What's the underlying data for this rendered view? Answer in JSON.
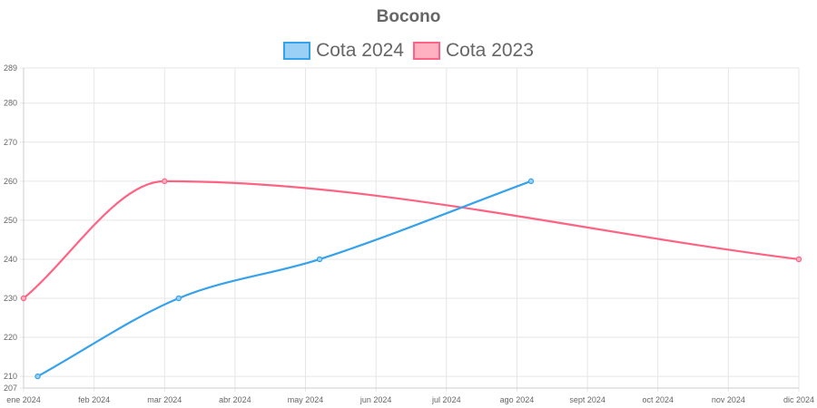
{
  "chart_data": {
    "type": "line",
    "title": "Bocono",
    "legend_position": "top",
    "grid": true,
    "x_categories": [
      "ene 2024",
      "feb 2024",
      "mar 2024",
      "abr 2024",
      "may 2024",
      "jun 2024",
      "jul 2024",
      "ago 2024",
      "sept 2024",
      "oct 2024",
      "nov 2024",
      "dic 2024"
    ],
    "y_ticks": [
      207,
      210,
      220,
      230,
      240,
      250,
      260,
      270,
      280,
      289
    ],
    "ylim": [
      207,
      289
    ],
    "series": [
      {
        "name": "Cota 2024",
        "color": "#36a2eb",
        "fill": "#9ad0f5",
        "points": [
          {
            "x": 0.2,
            "y": 210
          },
          {
            "x": 2.2,
            "y": 230
          },
          {
            "x": 4.2,
            "y": 240
          },
          {
            "x": 7.2,
            "y": 260
          }
        ]
      },
      {
        "name": "Cota 2023",
        "color": "#ff6384",
        "fill": "#ffb1c1",
        "points": [
          {
            "x": 0,
            "y": 230
          },
          {
            "x": 2,
            "y": 260
          },
          {
            "x": 11,
            "y": 240
          }
        ]
      }
    ]
  }
}
